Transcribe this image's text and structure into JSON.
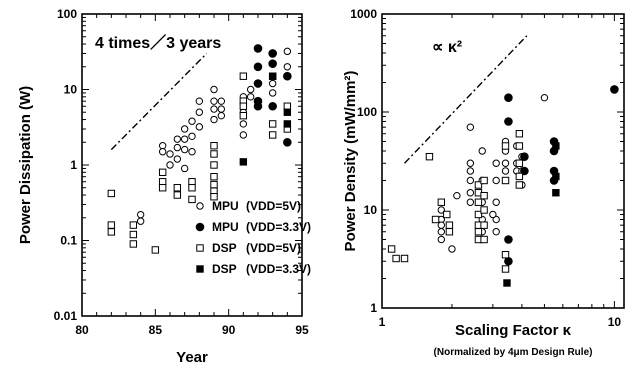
{
  "chart_data": [
    {
      "type": "scatter",
      "xlabel": "Year",
      "ylabel": "Power Dissipation (W)",
      "xscale": "linear",
      "yscale": "log",
      "xlim": [
        80,
        95
      ],
      "ylim": [
        0.01,
        100
      ],
      "xticks": [
        "80",
        "85",
        "90",
        "95"
      ],
      "yticks": [
        "0.01",
        "0.1",
        "1",
        "10",
        "100"
      ],
      "annotation": "4 times／3 years",
      "trend_line": {
        "x": [
          82,
          88.5
        ],
        "y": [
          1.6,
          30
        ]
      },
      "legend": [
        {
          "label": "MPU",
          "cond": "(VDD=5V)"
        },
        {
          "label": "MPU",
          "cond": "(VDD=3.3V)"
        },
        {
          "label": "DSP",
          "cond": "(VDD=5V)"
        },
        {
          "label": "DSP",
          "cond": "(VDD=3.3V)"
        }
      ],
      "series": [
        {
          "name": "MPU (VDD=5V)",
          "marker": "open-circle",
          "points": [
            [
              84,
              0.22
            ],
            [
              84,
              0.18
            ],
            [
              85.5,
              1.8
            ],
            [
              85.5,
              1.5
            ],
            [
              86,
              1.4
            ],
            [
              86,
              1.0
            ],
            [
              86.5,
              2.2
            ],
            [
              86.5,
              1.7
            ],
            [
              86.5,
              1.2
            ],
            [
              87,
              3.0
            ],
            [
              87,
              2.2
            ],
            [
              87,
              1.6
            ],
            [
              87,
              0.9
            ],
            [
              87.5,
              3.8
            ],
            [
              87.5,
              2.4
            ],
            [
              87.5,
              1.5
            ],
            [
              88,
              7
            ],
            [
              88,
              5
            ],
            [
              88,
              3.2
            ],
            [
              89,
              10
            ],
            [
              89,
              7
            ],
            [
              89,
              5.5
            ],
            [
              89,
              4
            ],
            [
              89.5,
              7
            ],
            [
              89.5,
              5.5
            ],
            [
              89.5,
              4.5
            ],
            [
              91,
              8
            ],
            [
              91,
              5
            ],
            [
              91,
              3.5
            ],
            [
              91,
              2.5
            ],
            [
              91.5,
              10
            ],
            [
              91.5,
              8
            ],
            [
              93,
              12
            ],
            [
              93,
              9
            ],
            [
              94,
              32
            ],
            [
              94,
              20
            ]
          ]
        },
        {
          "name": "MPU (VDD=3.3V)",
          "marker": "filled-circle",
          "points": [
            [
              92,
              35
            ],
            [
              92,
              20
            ],
            [
              92,
              12
            ],
            [
              92,
              7
            ],
            [
              92,
              6
            ],
            [
              93,
              30
            ],
            [
              93,
              22
            ],
            [
              93,
              6
            ],
            [
              94,
              15
            ],
            [
              94,
              2.0
            ]
          ]
        },
        {
          "name": "DSP (VDD=5V)",
          "marker": "open-square",
          "points": [
            [
              82,
              0.42
            ],
            [
              82,
              0.16
            ],
            [
              82,
              0.13
            ],
            [
              83.5,
              0.16
            ],
            [
              83.5,
              0.12
            ],
            [
              83.5,
              0.09
            ],
            [
              85,
              0.075
            ],
            [
              85.5,
              0.8
            ],
            [
              85.5,
              0.6
            ],
            [
              85.5,
              0.5
            ],
            [
              86.5,
              0.5
            ],
            [
              86.5,
              0.4
            ],
            [
              87.5,
              0.6
            ],
            [
              87.5,
              0.5
            ],
            [
              87.5,
              0.35
            ],
            [
              89,
              1.8
            ],
            [
              89,
              1.4
            ],
            [
              89,
              1.0
            ],
            [
              89,
              0.7
            ],
            [
              89,
              0.55
            ],
            [
              89,
              0.45
            ],
            [
              89,
              0.38
            ],
            [
              91,
              15
            ],
            [
              91,
              7
            ],
            [
              91,
              6
            ],
            [
              91,
              4.5
            ],
            [
              93,
              15
            ],
            [
              93,
              3.5
            ],
            [
              93,
              2.5
            ],
            [
              94,
              6
            ],
            [
              94,
              3
            ]
          ]
        },
        {
          "name": "DSP (VDD=3.3V)",
          "marker": "filled-square",
          "points": [
            [
              91,
              1.1
            ],
            [
              93,
              15
            ],
            [
              94,
              5
            ],
            [
              94,
              3.5
            ]
          ]
        }
      ]
    },
    {
      "type": "scatter",
      "xlabel": "Scaling Factor κ",
      "x_sublabel": "(Normalized by 4μm Design Rule)",
      "ylabel": "Power Density (mW/mm²)",
      "xscale": "log",
      "yscale": "log",
      "xlim": [
        1,
        11
      ],
      "ylim": [
        1,
        1000
      ],
      "xticks": [
        "1",
        "10"
      ],
      "yticks": [
        "1",
        "10",
        "100",
        "1000"
      ],
      "annotation": "∝ κ²",
      "trend_line": {
        "x": [
          1.25,
          4.2
        ],
        "y": [
          30,
          600
        ]
      },
      "series": [
        {
          "name": "MPU (VDD=5V)",
          "marker": "open-circle",
          "points": [
            [
              1.8,
              10
            ],
            [
              1.8,
              8
            ],
            [
              1.8,
              7
            ],
            [
              1.8,
              6
            ],
            [
              1.8,
              5
            ],
            [
              2.0,
              4
            ],
            [
              2.1,
              14
            ],
            [
              2.4,
              70
            ],
            [
              2.4,
              30
            ],
            [
              2.4,
              25
            ],
            [
              2.4,
              20
            ],
            [
              2.4,
              15
            ],
            [
              2.4,
              12
            ],
            [
              2.7,
              40
            ],
            [
              2.7,
              20
            ],
            [
              2.7,
              12
            ],
            [
              2.7,
              8
            ],
            [
              2.7,
              6
            ],
            [
              2.7,
              5
            ],
            [
              3.1,
              30
            ],
            [
              3.1,
              20
            ],
            [
              3.1,
              12
            ],
            [
              3.1,
              8
            ],
            [
              3.1,
              6
            ],
            [
              3.4,
              50
            ],
            [
              3.4,
              40
            ],
            [
              3.4,
              30
            ],
            [
              3.4,
              25
            ],
            [
              3.8,
              45
            ],
            [
              3.8,
              30
            ],
            [
              3.8,
              25
            ],
            [
              4.0,
              35
            ],
            [
              4.0,
              25
            ],
            [
              4.0,
              18
            ],
            [
              5.0,
              140
            ],
            [
              3.0,
              9
            ]
          ]
        },
        {
          "name": "MPU (VDD=3.3V)",
          "marker": "filled-circle",
          "points": [
            [
              3.5,
              140
            ],
            [
              3.5,
              80
            ],
            [
              3.5,
              5
            ],
            [
              3.5,
              3
            ],
            [
              4.1,
              35
            ],
            [
              4.1,
              25
            ],
            [
              5.5,
              50
            ],
            [
              5.5,
              40
            ],
            [
              5.5,
              25
            ],
            [
              5.5,
              20
            ],
            [
              10,
              170
            ]
          ]
        },
        {
          "name": "DSP (VDD=5V)",
          "marker": "open-square",
          "points": [
            [
              1.1,
              4
            ],
            [
              1.15,
              3.2
            ],
            [
              1.25,
              3.2
            ],
            [
              1.6,
              35
            ],
            [
              1.7,
              8
            ],
            [
              1.8,
              12
            ],
            [
              1.9,
              9
            ],
            [
              1.95,
              7
            ],
            [
              1.95,
              6
            ],
            [
              2.6,
              18
            ],
            [
              2.6,
              15
            ],
            [
              2.6,
              12
            ],
            [
              2.6,
              9
            ],
            [
              2.6,
              7
            ],
            [
              2.6,
              6
            ],
            [
              2.6,
              5
            ],
            [
              2.75,
              20
            ],
            [
              2.75,
              14
            ],
            [
              2.75,
              10
            ],
            [
              2.75,
              7
            ],
            [
              2.75,
              5
            ],
            [
              3.4,
              45
            ],
            [
              3.4,
              20
            ],
            [
              3.4,
              3.5
            ],
            [
              3.4,
              2.5
            ],
            [
              3.9,
              60
            ],
            [
              3.9,
              45
            ],
            [
              3.9,
              30
            ],
            [
              3.9,
              22
            ],
            [
              3.9,
              18
            ]
          ]
        },
        {
          "name": "DSP (VDD=3.3V)",
          "marker": "filled-square",
          "points": [
            [
              3.45,
              1.8
            ],
            [
              5.6,
              45
            ],
            [
              5.6,
              22
            ],
            [
              5.6,
              15
            ]
          ]
        }
      ]
    }
  ]
}
